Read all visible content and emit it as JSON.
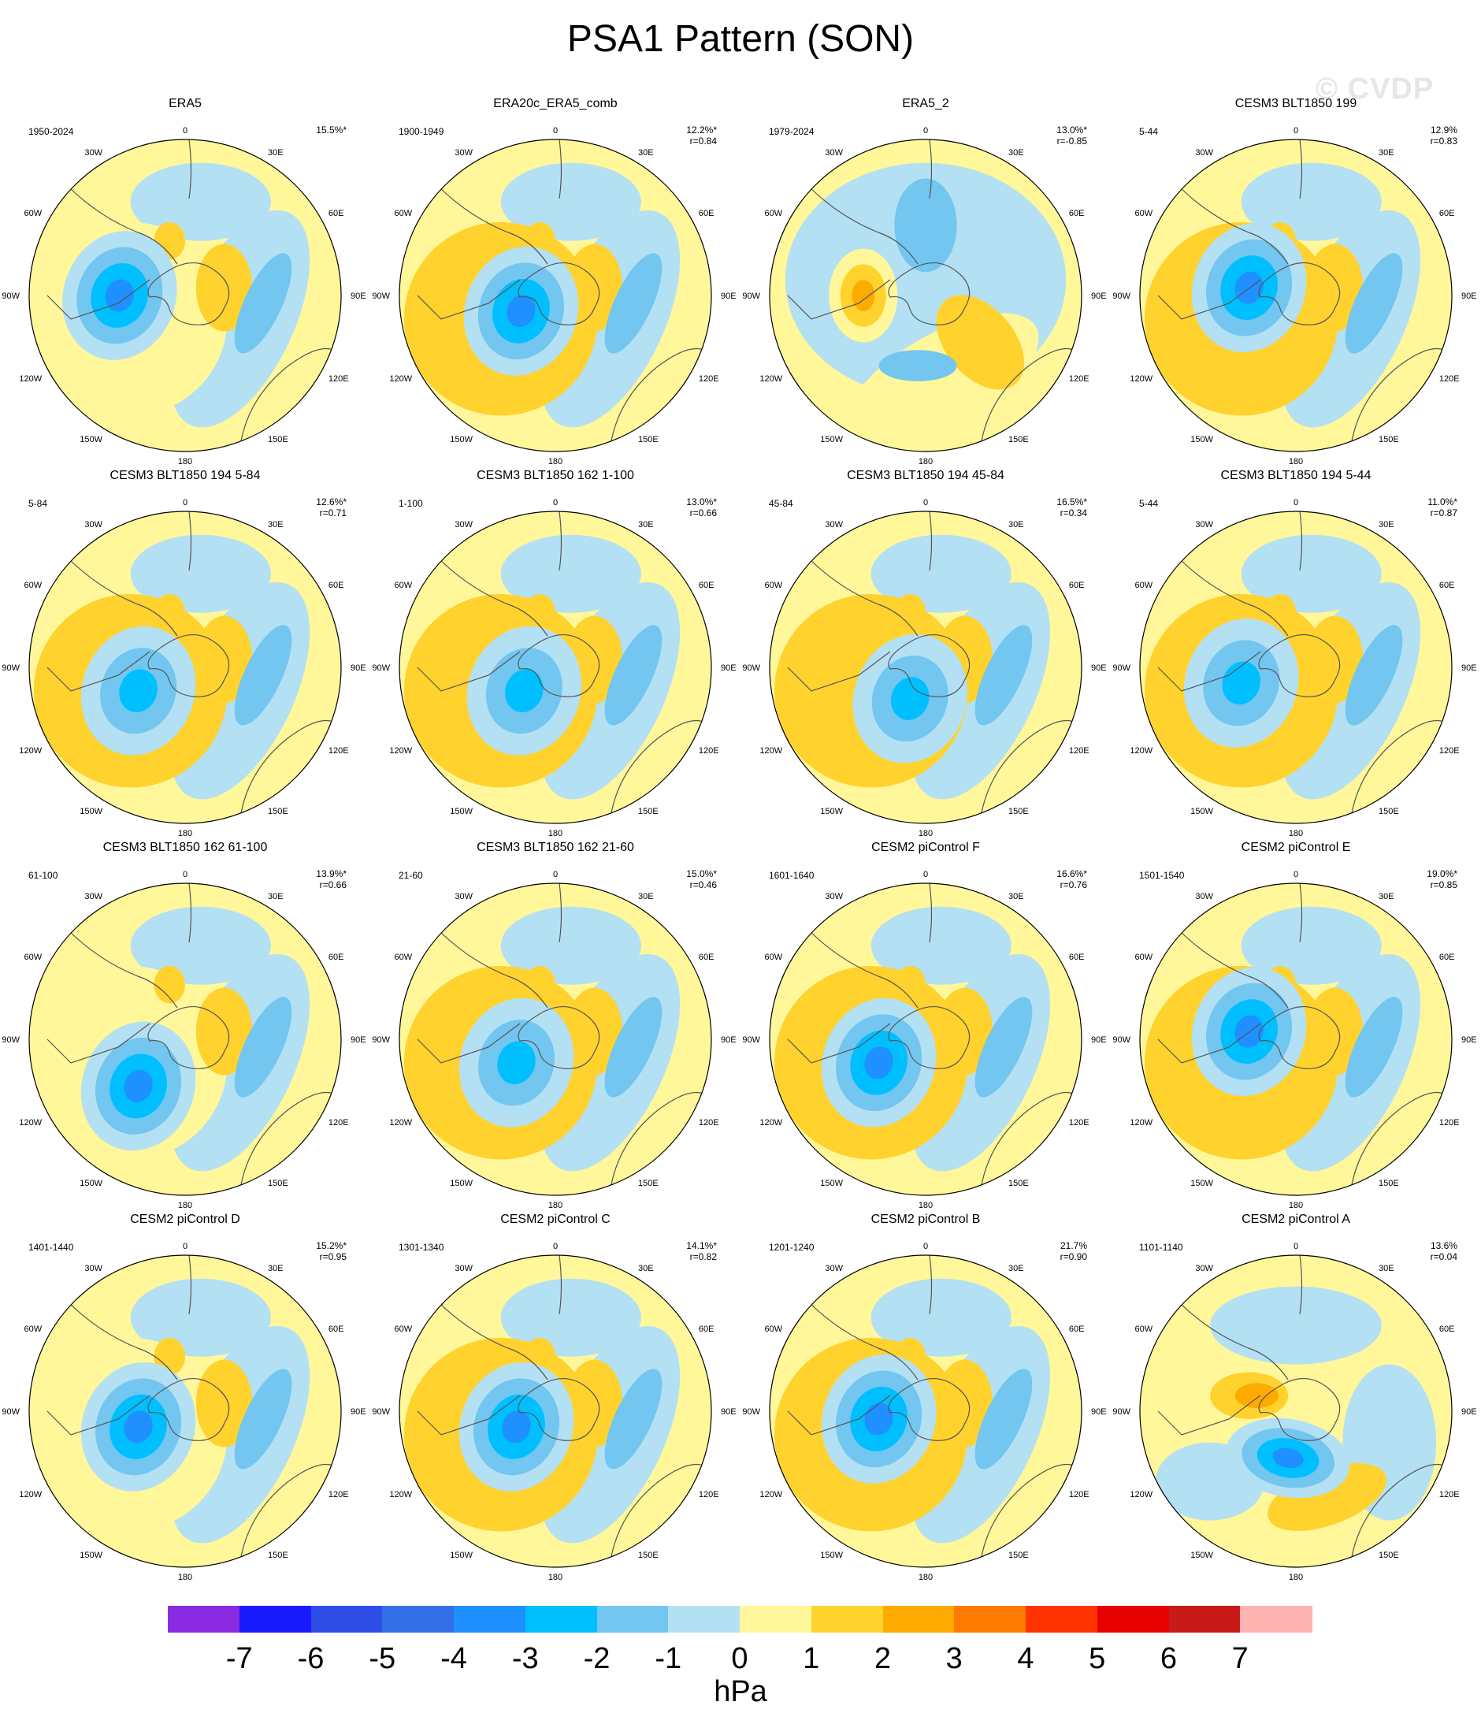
{
  "title": "PSA1 Pattern (SON)",
  "watermark": "© CVDP",
  "lon_labels": [
    "0",
    "30E",
    "60E",
    "90E",
    "120E",
    "150E",
    "180",
    "150W",
    "120W",
    "90W",
    "60W",
    "30W"
  ],
  "panels": [
    {
      "title": "ERA5",
      "years": "1950-2024",
      "pct": "15.5%*",
      "r": "",
      "type": "A",
      "amp": 3.5,
      "nodal": "r",
      "pos": [
        -0.42,
        0.0
      ]
    },
    {
      "title": "ERA20c_ERA5_comb",
      "years": "1900-1949",
      "pct": "12.2%*",
      "r": "r=0.84",
      "type": "B",
      "amp": 3.5,
      "nodal": "r",
      "pos": [
        -0.22,
        0.1
      ]
    },
    {
      "title": "ERA5_2",
      "years": "1979-2024",
      "pct": "13.0%*",
      "r": "r=-0.85",
      "type": "C",
      "amp": 2.5,
      "nodal": "b",
      "pos": [
        -0.4,
        0.0
      ]
    },
    {
      "title": "CESM3 BLT1850 199",
      "years": "5-44",
      "pct": "12.9%",
      "r": "r=0.83",
      "type": "B",
      "amp": 3.5,
      "nodal": "r",
      "pos": [
        -0.3,
        -0.05
      ]
    },
    {
      "title": "CESM3 BLT1850 194 5-84",
      "years": "5-84",
      "pct": "12.6%*",
      "r": "r=0.71",
      "type": "B",
      "amp": 3,
      "nodal": "r",
      "pos": [
        -0.3,
        0.15
      ]
    },
    {
      "title": "CESM3 BLT1850 162 1-100",
      "years": "1-100",
      "pct": "13.0%*",
      "r": "r=0.66",
      "type": "B",
      "amp": 3,
      "nodal": "r",
      "pos": [
        -0.2,
        0.15
      ]
    },
    {
      "title": "CESM3 BLT1850 194 45-84",
      "years": "45-84",
      "pct": "16.5%*",
      "r": "r=0.34",
      "type": "B",
      "amp": 3,
      "nodal": "r",
      "pos": [
        -0.1,
        0.2
      ]
    },
    {
      "title": "CESM3 BLT1850 194 5-44",
      "years": "5-44",
      "pct": "11.0%*",
      "r": "r=0.87",
      "type": "B",
      "amp": 3,
      "nodal": "r",
      "pos": [
        -0.35,
        0.1
      ]
    },
    {
      "title": "CESM3 BLT1850 162 61-100",
      "years": "61-100",
      "pct": "13.9%*",
      "r": "r=0.66",
      "type": "A",
      "amp": 3.5,
      "nodal": "r",
      "pos": [
        -0.3,
        0.3
      ]
    },
    {
      "title": "CESM3 BLT1850 162 21-60",
      "years": "21-60",
      "pct": "15.0%*",
      "r": "r=0.46",
      "type": "B",
      "amp": 3,
      "nodal": "r",
      "pos": [
        -0.25,
        0.15
      ]
    },
    {
      "title": "CESM2 piControl F",
      "years": "1601-1640",
      "pct": "16.6%*",
      "r": "r=0.76",
      "type": "B",
      "amp": 3.5,
      "nodal": "r",
      "pos": [
        -0.3,
        0.15
      ]
    },
    {
      "title": "CESM2 piControl E",
      "years": "1501-1540",
      "pct": "19.0%*",
      "r": "r=0.85",
      "type": "B",
      "amp": 4,
      "nodal": "r",
      "pos": [
        -0.3,
        -0.05
      ]
    },
    {
      "title": "CESM2 piControl D",
      "years": "1401-1440",
      "pct": "15.2%*",
      "r": "r=0.95",
      "type": "A",
      "amp": 4,
      "nodal": "r",
      "pos": [
        -0.3,
        0.1
      ]
    },
    {
      "title": "CESM2 piControl C",
      "years": "1301-1340",
      "pct": "14.1%*",
      "r": "r=0.82",
      "type": "B",
      "amp": 3.5,
      "nodal": "r",
      "pos": [
        -0.25,
        0.1
      ]
    },
    {
      "title": "CESM2 piControl B",
      "years": "1201-1240",
      "pct": "21.7%",
      "r": "r=0.90",
      "type": "B",
      "amp": 4,
      "nodal": "r",
      "pos": [
        -0.3,
        0.05
      ]
    },
    {
      "title": "CESM2 piControl A",
      "years": "1101-1140",
      "pct": "13.6%",
      "r": "r=0.04",
      "type": "D",
      "amp": 3.5,
      "nodal": "r",
      "pos": [
        -0.05,
        0.3
      ]
    }
  ],
  "colorbar": {
    "unit": "hPa",
    "labels": [
      "-7",
      "-6",
      "-5",
      "-4",
      "-3",
      "-2",
      "-1",
      "0",
      "1",
      "2",
      "3",
      "4",
      "5",
      "6",
      "7"
    ],
    "colors": [
      "#8a2be2",
      "#1a1aff",
      "#2e4ce6",
      "#3370e8",
      "#1e90ff",
      "#00bfff",
      "#72c6f0",
      "#b4e0f4",
      "#fff79a",
      "#ffd22e",
      "#ffaa00",
      "#ff7a00",
      "#ff3300",
      "#e60000",
      "#c91a1a",
      "#ffb3b3"
    ]
  }
}
